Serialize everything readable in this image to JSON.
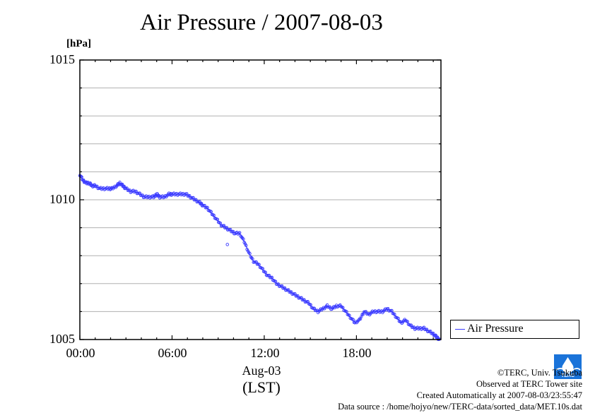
{
  "chart_data": {
    "type": "scatter",
    "title": "Air Pressure / 2007-08-03",
    "ylabel": "[hPa]",
    "xlabel": "Aug-03",
    "xlabel2": "(LST)",
    "x_ticks": [
      "00:00",
      "06:00",
      "12:00",
      "18:00"
    ],
    "y_ticks": [
      "1015",
      "1010",
      "1005"
    ],
    "ylim": [
      1005,
      1015
    ],
    "xlim_hours": [
      0,
      23.5
    ],
    "grid": true,
    "legend_position": "bottom-right, outside plot",
    "series": [
      {
        "name": "Air Pressure",
        "color": "#3b3bff",
        "x_hours": [
          0.0,
          0.2,
          0.4,
          0.6,
          0.8,
          1.0,
          1.3,
          1.6,
          1.9,
          2.1,
          2.4,
          2.6,
          2.8,
          3.0,
          3.3,
          3.6,
          3.9,
          4.2,
          4.5,
          4.8,
          5.0,
          5.2,
          5.5,
          5.8,
          6.0,
          6.3,
          6.6,
          6.9,
          7.2,
          7.5,
          7.8,
          8.0,
          8.3,
          8.6,
          8.9,
          9.2,
          9.5,
          9.8,
          10.1,
          10.4,
          10.7,
          11.0,
          11.3,
          11.6,
          11.9,
          12.2,
          12.5,
          12.8,
          13.1,
          13.4,
          13.7,
          14.0,
          14.3,
          14.6,
          14.9,
          15.2,
          15.5,
          15.8,
          16.1,
          16.4,
          16.7,
          17.0,
          17.3,
          17.6,
          17.9,
          18.2,
          18.5,
          18.8,
          19.1,
          19.4,
          19.7,
          20.0,
          20.3,
          20.6,
          20.9,
          21.2,
          21.5,
          21.8,
          22.1,
          22.4,
          22.7,
          23.0,
          23.2,
          23.4
        ],
        "values": [
          1010.9,
          1010.7,
          1010.6,
          1010.6,
          1010.5,
          1010.5,
          1010.4,
          1010.4,
          1010.4,
          1010.4,
          1010.5,
          1010.6,
          1010.5,
          1010.4,
          1010.3,
          1010.3,
          1010.2,
          1010.1,
          1010.1,
          1010.1,
          1010.2,
          1010.1,
          1010.1,
          1010.2,
          1010.2,
          1010.2,
          1010.2,
          1010.2,
          1010.1,
          1010.0,
          1009.9,
          1009.8,
          1009.7,
          1009.5,
          1009.3,
          1009.1,
          1009.0,
          1008.9,
          1008.8,
          1008.8,
          1008.5,
          1008.1,
          1007.8,
          1007.7,
          1007.5,
          1007.3,
          1007.2,
          1007.0,
          1006.9,
          1006.8,
          1006.7,
          1006.6,
          1006.5,
          1006.4,
          1006.3,
          1006.1,
          1006.0,
          1006.1,
          1006.2,
          1006.1,
          1006.2,
          1006.2,
          1006.0,
          1005.8,
          1005.6,
          1005.7,
          1006.0,
          1005.9,
          1006.0,
          1006.0,
          1006.0,
          1006.1,
          1006.0,
          1005.8,
          1005.6,
          1005.7,
          1005.5,
          1005.4,
          1005.4,
          1005.4,
          1005.3,
          1005.2,
          1005.1,
          1005.0
        ]
      }
    ]
  },
  "credits": {
    "copyright": "©TERC, Univ. Tsukuba",
    "observed": "Observed at TERC Tower site",
    "created": "Created Automatically at 2007-08-03/23:55:47",
    "source": "Data source : /home/hojyo/new/TERC-data/sorted_data/MET.10s.dat"
  },
  "logo": {
    "text": "TERC",
    "icon": "terc-logo-icon"
  }
}
